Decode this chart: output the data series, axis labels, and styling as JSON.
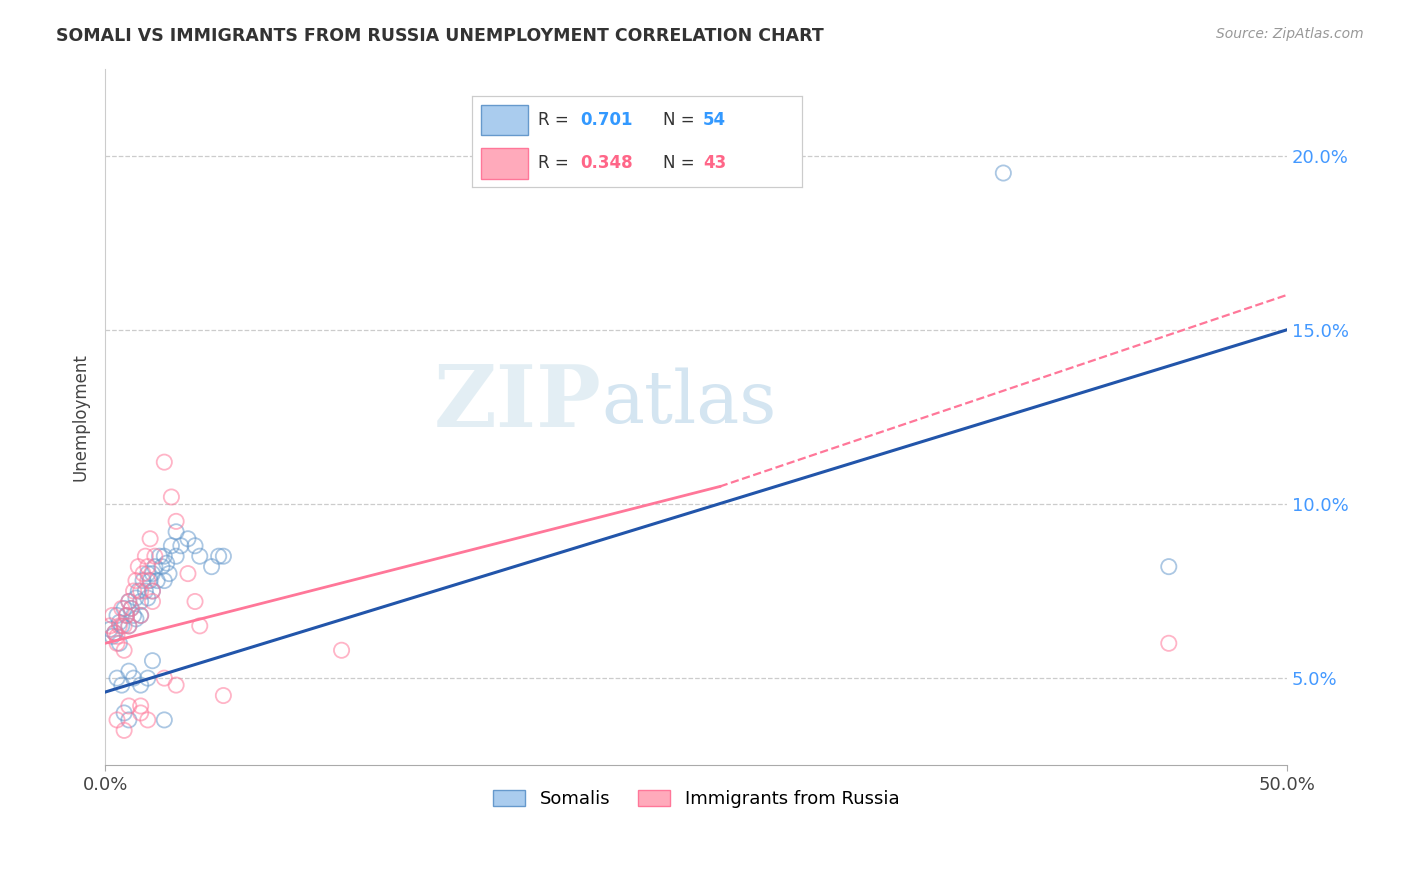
{
  "title": "SOMALI VS IMMIGRANTS FROM RUSSIA UNEMPLOYMENT CORRELATION CHART",
  "source": "Source: ZipAtlas.com",
  "ylabel": "Unemployment",
  "ytick_vals": [
    0.05,
    0.1,
    0.15,
    0.2
  ],
  "ytick_labels": [
    "5.0%",
    "10.0%",
    "15.0%",
    "20.0%"
  ],
  "xtick_vals": [
    0.0,
    0.5
  ],
  "xtick_labels": [
    "0.0%",
    "50.0%"
  ],
  "legend_blue_label": "Somalis",
  "legend_pink_label": "Immigrants from Russia",
  "watermark": "ZIPatlas",
  "blue_color": "#6699CC",
  "blue_line_color": "#2255AA",
  "pink_color": "#FF7799",
  "xlim": [
    0.0,
    0.5
  ],
  "ylim": [
    0.025,
    0.225
  ],
  "blue_line": [
    [
      0.0,
      0.046
    ],
    [
      0.5,
      0.15
    ]
  ],
  "pink_line_solid": [
    [
      0.0,
      0.06
    ],
    [
      0.26,
      0.105
    ]
  ],
  "pink_line_dash": [
    [
      0.26,
      0.105
    ],
    [
      0.5,
      0.16
    ]
  ],
  "blue_scatter": [
    [
      0.002,
      0.064
    ],
    [
      0.003,
      0.062
    ],
    [
      0.004,
      0.063
    ],
    [
      0.005,
      0.068
    ],
    [
      0.006,
      0.066
    ],
    [
      0.006,
      0.06
    ],
    [
      0.007,
      0.065
    ],
    [
      0.008,
      0.07
    ],
    [
      0.009,
      0.068
    ],
    [
      0.01,
      0.072
    ],
    [
      0.01,
      0.065
    ],
    [
      0.011,
      0.07
    ],
    [
      0.012,
      0.068
    ],
    [
      0.013,
      0.073
    ],
    [
      0.013,
      0.067
    ],
    [
      0.014,
      0.075
    ],
    [
      0.015,
      0.072
    ],
    [
      0.015,
      0.068
    ],
    [
      0.016,
      0.078
    ],
    [
      0.017,
      0.075
    ],
    [
      0.018,
      0.08
    ],
    [
      0.018,
      0.073
    ],
    [
      0.019,
      0.078
    ],
    [
      0.02,
      0.08
    ],
    [
      0.02,
      0.075
    ],
    [
      0.021,
      0.082
    ],
    [
      0.022,
      0.078
    ],
    [
      0.023,
      0.085
    ],
    [
      0.024,
      0.082
    ],
    [
      0.025,
      0.085
    ],
    [
      0.025,
      0.078
    ],
    [
      0.026,
      0.083
    ],
    [
      0.027,
      0.08
    ],
    [
      0.028,
      0.088
    ],
    [
      0.03,
      0.085
    ],
    [
      0.03,
      0.092
    ],
    [
      0.032,
      0.088
    ],
    [
      0.035,
      0.09
    ],
    [
      0.038,
      0.088
    ],
    [
      0.04,
      0.085
    ],
    [
      0.045,
      0.082
    ],
    [
      0.048,
      0.085
    ],
    [
      0.05,
      0.085
    ],
    [
      0.005,
      0.05
    ],
    [
      0.007,
      0.048
    ],
    [
      0.01,
      0.052
    ],
    [
      0.012,
      0.05
    ],
    [
      0.015,
      0.048
    ],
    [
      0.018,
      0.05
    ],
    [
      0.02,
      0.055
    ],
    [
      0.008,
      0.04
    ],
    [
      0.01,
      0.038
    ],
    [
      0.025,
      0.038
    ],
    [
      0.38,
      0.195
    ],
    [
      0.45,
      0.082
    ]
  ],
  "pink_scatter": [
    [
      0.002,
      0.065
    ],
    [
      0.003,
      0.068
    ],
    [
      0.004,
      0.063
    ],
    [
      0.005,
      0.062
    ],
    [
      0.005,
      0.06
    ],
    [
      0.006,
      0.065
    ],
    [
      0.007,
      0.07
    ],
    [
      0.008,
      0.065
    ],
    [
      0.008,
      0.058
    ],
    [
      0.009,
      0.068
    ],
    [
      0.01,
      0.072
    ],
    [
      0.01,
      0.065
    ],
    [
      0.011,
      0.07
    ],
    [
      0.012,
      0.075
    ],
    [
      0.013,
      0.078
    ],
    [
      0.014,
      0.082
    ],
    [
      0.015,
      0.075
    ],
    [
      0.015,
      0.068
    ],
    [
      0.016,
      0.08
    ],
    [
      0.017,
      0.085
    ],
    [
      0.018,
      0.082
    ],
    [
      0.018,
      0.078
    ],
    [
      0.019,
      0.09
    ],
    [
      0.02,
      0.075
    ],
    [
      0.02,
      0.072
    ],
    [
      0.021,
      0.085
    ],
    [
      0.025,
      0.112
    ],
    [
      0.028,
      0.102
    ],
    [
      0.03,
      0.095
    ],
    [
      0.035,
      0.08
    ],
    [
      0.038,
      0.072
    ],
    [
      0.04,
      0.065
    ],
    [
      0.005,
      0.038
    ],
    [
      0.008,
      0.035
    ],
    [
      0.01,
      0.042
    ],
    [
      0.015,
      0.042
    ],
    [
      0.015,
      0.04
    ],
    [
      0.018,
      0.038
    ],
    [
      0.025,
      0.05
    ],
    [
      0.03,
      0.048
    ],
    [
      0.05,
      0.045
    ],
    [
      0.1,
      0.058
    ],
    [
      0.45,
      0.06
    ]
  ]
}
